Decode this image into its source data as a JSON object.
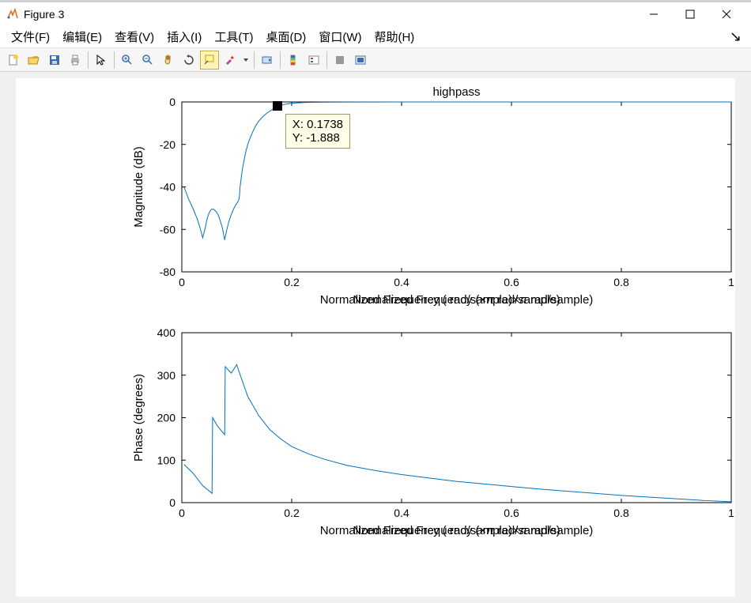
{
  "window": {
    "title": "Figure 3"
  },
  "menu": {
    "items": [
      "文件(F)",
      "编辑(E)",
      "查看(V)",
      "插入(I)",
      "工具(T)",
      "桌面(D)",
      "窗口(W)",
      "帮助(H)"
    ]
  },
  "toolbar": {
    "icons": [
      "new",
      "open",
      "save",
      "print",
      "sep",
      "pointer",
      "sep",
      "zoom-in",
      "zoom-out",
      "pan",
      "rotate",
      "datatip",
      "brush",
      "dropdown",
      "sep",
      "link",
      "sep",
      "colorbar",
      "legend",
      "sep",
      "grid",
      "layout"
    ],
    "active_index": 11
  },
  "chart_top": {
    "title": "highpass",
    "ylabel": "Magnitude (dB)",
    "xlabel": "Normalized Frequency  (×π rad/sample)",
    "xlim": [
      0,
      1
    ],
    "ylim": [
      -80,
      0
    ],
    "xticks": [
      0,
      0.2,
      0.4,
      0.6,
      0.8,
      1
    ],
    "yticks": [
      -80,
      -60,
      -40,
      -20,
      0
    ],
    "line_color": "#0072bd",
    "line_width": 1,
    "background": "#ffffff",
    "axis_x": 210,
    "axis_y": 30,
    "axis_w": 695,
    "axis_h": 215,
    "data": [
      [
        0.004,
        -40
      ],
      [
        0.012,
        -45.5
      ],
      [
        0.02,
        -50
      ],
      [
        0.028,
        -55
      ],
      [
        0.034,
        -60
      ],
      [
        0.038,
        -64
      ],
      [
        0.042,
        -60
      ],
      [
        0.046,
        -55
      ],
      [
        0.05,
        -52
      ],
      [
        0.054,
        -50.5
      ],
      [
        0.058,
        -50.5
      ],
      [
        0.062,
        -51.5
      ],
      [
        0.066,
        -53
      ],
      [
        0.07,
        -56
      ],
      [
        0.074,
        -59.5
      ],
      [
        0.078,
        -65
      ],
      [
        0.082,
        -60
      ],
      [
        0.086,
        -56
      ],
      [
        0.09,
        -53
      ],
      [
        0.094,
        -50.5
      ],
      [
        0.098,
        -48.5
      ],
      [
        0.102,
        -47
      ],
      [
        0.104,
        -46
      ],
      [
        0.105,
        -44
      ],
      [
        0.106,
        -40
      ],
      [
        0.108,
        -36
      ],
      [
        0.11,
        -32
      ],
      [
        0.113,
        -28
      ],
      [
        0.116,
        -24
      ],
      [
        0.12,
        -20
      ],
      [
        0.125,
        -16.5
      ],
      [
        0.13,
        -13.5
      ],
      [
        0.135,
        -11
      ],
      [
        0.14,
        -9
      ],
      [
        0.148,
        -6.8
      ],
      [
        0.155,
        -5.2
      ],
      [
        0.165,
        -3.5
      ],
      [
        0.1738,
        -1.888
      ],
      [
        0.185,
        -1.2
      ],
      [
        0.2,
        -0.6
      ],
      [
        0.22,
        -0.3
      ],
      [
        0.25,
        -0.15
      ],
      [
        0.3,
        -0.05
      ],
      [
        0.4,
        0
      ],
      [
        0.6,
        0
      ],
      [
        0.8,
        0
      ],
      [
        1.0,
        0
      ]
    ],
    "datatip": {
      "marker_x": 0.1738,
      "marker_y": -1.888,
      "text1": "X: 0.1738",
      "text2": "Y: -1.888"
    }
  },
  "chart_bottom": {
    "ylabel": "Phase (degrees)",
    "xlabel": "Normalized Frequency  (×π rad/sample)",
    "xlim": [
      0,
      1
    ],
    "ylim": [
      0,
      400
    ],
    "xticks": [
      0,
      0.2,
      0.4,
      0.6,
      0.8,
      1
    ],
    "yticks": [
      0,
      100,
      200,
      300,
      400
    ],
    "line_color": "#0072bd",
    "line_width": 1,
    "background": "#ffffff",
    "axis_x": 210,
    "axis_y": 322,
    "axis_w": 695,
    "axis_h": 215,
    "data": [
      [
        0.004,
        90
      ],
      [
        0.02,
        70
      ],
      [
        0.038,
        40
      ],
      [
        0.055,
        22
      ],
      [
        0.056,
        200
      ],
      [
        0.065,
        180
      ],
      [
        0.078,
        160
      ],
      [
        0.079,
        320
      ],
      [
        0.09,
        305
      ],
      [
        0.1,
        325
      ],
      [
        0.101,
        320
      ],
      [
        0.12,
        250
      ],
      [
        0.14,
        205
      ],
      [
        0.16,
        172
      ],
      [
        0.18,
        150
      ],
      [
        0.2,
        132
      ],
      [
        0.23,
        115
      ],
      [
        0.26,
        102
      ],
      [
        0.3,
        88
      ],
      [
        0.35,
        76
      ],
      [
        0.4,
        66
      ],
      [
        0.45,
        58
      ],
      [
        0.5,
        50
      ],
      [
        0.55,
        44
      ],
      [
        0.6,
        38
      ],
      [
        0.65,
        32
      ],
      [
        0.7,
        27
      ],
      [
        0.75,
        22
      ],
      [
        0.8,
        17
      ],
      [
        0.85,
        13
      ],
      [
        0.9,
        9
      ],
      [
        0.95,
        5
      ],
      [
        1.0,
        2
      ]
    ]
  }
}
